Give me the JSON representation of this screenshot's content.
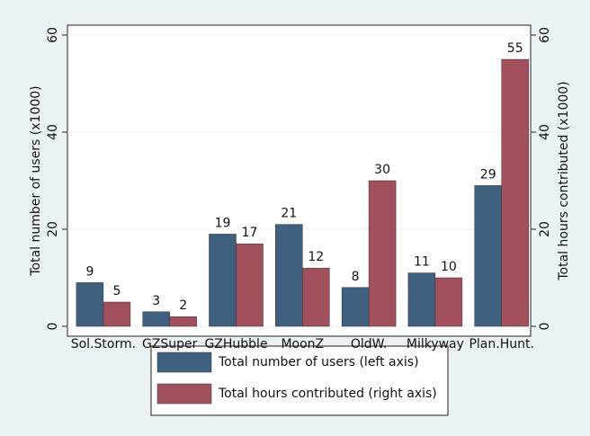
{
  "chart_data": {
    "type": "bar",
    "categories": [
      "Sol.Storm.",
      "GZSuper",
      "GZHubble",
      "MoonZ",
      "OldW.",
      "Milkyway",
      "Plan.Hunt."
    ],
    "series": [
      {
        "name": "Total number of users (left axis)",
        "color": "#40607f",
        "values": [
          9,
          3,
          19,
          21,
          8,
          11,
          29
        ]
      },
      {
        "name": "Total hours contributed (right axis)",
        "color": "#a2505b",
        "axis": "y2",
        "values": [
          5,
          2,
          17,
          12,
          30,
          10,
          55
        ]
      }
    ],
    "ylabel": "Total number of users (x1000)",
    "y2label": "Total hours contributed (x1000)",
    "ylim": [
      0,
      60
    ],
    "yticks": [
      0,
      20,
      40,
      60
    ],
    "y2lim": [
      0,
      60
    ],
    "y2ticks": [
      0,
      20,
      40,
      60
    ],
    "grid": true,
    "legend": "bottom"
  }
}
